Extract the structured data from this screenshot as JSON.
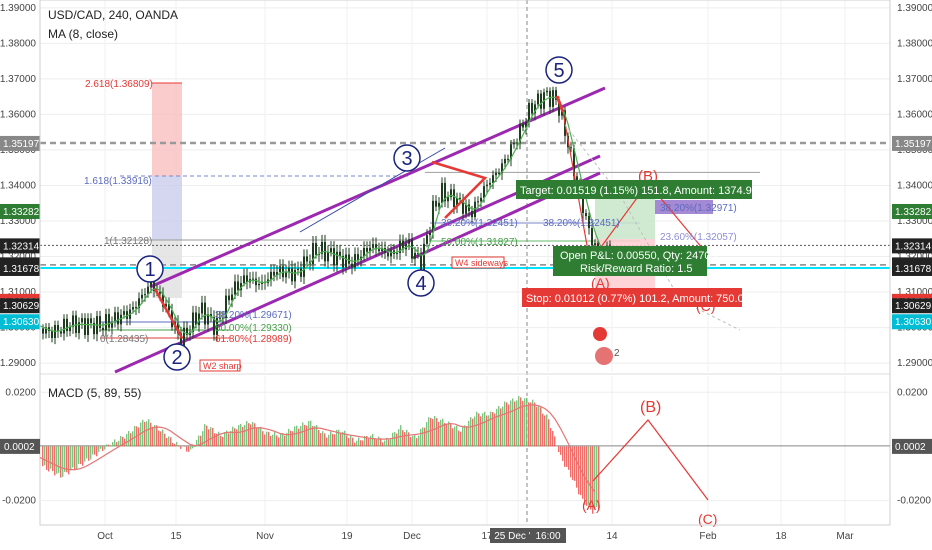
{
  "header": {
    "title": "USD/CAD, 240, OANDA",
    "ma": "MA (8, close)",
    "macd": "MACD (5, 89, 55)"
  },
  "colors": {
    "bull": "#26a69a",
    "bear": "#ef5350",
    "candle": "#1e3d1e",
    "channel": "#9c27b0",
    "wave": "#1a237e",
    "elliott_red": "#e53935",
    "cyan": "#00e5ff"
  },
  "chart_data": [
    {
      "type": "line",
      "title": "USD/CAD, 240, OANDA",
      "price_axis": [
        "1.39000",
        "1.38000",
        "1.37000",
        "1.36000",
        "1.35000",
        "1.34000",
        "1.33000",
        "1.32000",
        "1.31000",
        "1.30000",
        "1.29000"
      ],
      "price_range": [
        1.2875,
        1.3922
      ],
      "x_ticks": [
        "Oct",
        "15",
        "Nov",
        "19",
        "Dec",
        "17",
        "25 Dec '18",
        "16:00",
        "14",
        "Feb",
        "18",
        "Mar"
      ],
      "price_path": [
        [
          10,
          1.3035
        ],
        [
          30,
          1.301
        ],
        [
          50,
          1.2985
        ],
        [
          70,
          1.301
        ],
        [
          100,
          1.3006
        ],
        [
          115,
          1.3025
        ],
        [
          130,
          1.3045
        ],
        [
          150,
          1.3125
        ],
        [
          165,
          1.306
        ],
        [
          180,
          1.2962
        ],
        [
          200,
          1.305
        ],
        [
          215,
          1.3
        ],
        [
          230,
          1.31
        ],
        [
          245,
          1.314
        ],
        [
          260,
          1.312
        ],
        [
          275,
          1.316
        ],
        [
          295,
          1.315
        ],
        [
          315,
          1.322
        ],
        [
          335,
          1.32
        ],
        [
          350,
          1.318
        ],
        [
          370,
          1.323
        ],
        [
          390,
          1.3205
        ],
        [
          405,
          1.324
        ],
        [
          420,
          1.318
        ],
        [
          432,
          1.333
        ],
        [
          440,
          1.338
        ],
        [
          455,
          1.336
        ],
        [
          470,
          1.332
        ],
        [
          485,
          1.34
        ],
        [
          500,
          1.345
        ],
        [
          515,
          1.353
        ],
        [
          530,
          1.362
        ],
        [
          545,
          1.3655
        ],
        [
          556,
          1.364
        ],
        [
          566,
          1.353
        ],
        [
          575,
          1.342
        ],
        [
          590,
          1.325
        ],
        [
          600,
          1.32
        ],
        [
          610,
          1.3245
        ]
      ],
      "moving_average": {
        "name": "MA (8, close)",
        "color": "#4caf50"
      },
      "price_labels": [
        {
          "value": "1.35197",
          "color": "#888888"
        },
        {
          "value": "1.33282",
          "color": "#2e7d32"
        },
        {
          "value": "1.32314",
          "color": "#222222"
        },
        {
          "value": "50:34",
          "color": "#222222"
        },
        {
          "value": "1.31764",
          "color": "#222222"
        },
        {
          "value": "1.31678",
          "color": "#222222"
        },
        {
          "value": "1.30752",
          "color": "#e53935"
        },
        {
          "value": "1.30629",
          "color": "#222222"
        },
        {
          "value": "1.30630",
          "color": "#00bcd4"
        }
      ],
      "fib_labels": [
        {
          "text": "2.618(1.36809)",
          "color": "#e53935"
        },
        {
          "text": "1.618(1.33916)",
          "color": "#5c6bc0"
        },
        {
          "text": "1(1.32128)",
          "color": "#777777"
        },
        {
          "text": "38.20%(1.29671)",
          "color": "#5c6bc0"
        },
        {
          "text": "50.00%(1.29330)",
          "color": "#43a047"
        },
        {
          "text": "61.80%(1.28989)",
          "color": "#e53935"
        },
        {
          "text": "0(1.28435)",
          "color": "#777777"
        },
        {
          "text": "38.20%(1.32451)",
          "color": "#5c6bc0"
        },
        {
          "text": "50.00%(1.31827)",
          "color": "#43a047"
        },
        {
          "text": "38.20%(1.32451)",
          "color": "#5c6bc0"
        },
        {
          "text": "23.60%(1.32057)",
          "color": "#8e8ed6"
        },
        {
          "text": "38.20%(1.32971)",
          "color": "#5c6bc0"
        }
      ],
      "wave_labels": [
        "1",
        "2",
        "3",
        "4",
        "5"
      ],
      "correction_labels": [
        "(A)",
        "(B)",
        "(C)"
      ],
      "notes": [
        "W2 sharp",
        "W4 sideways"
      ],
      "trade_box": {
        "target": "Target: 0.01519 (1.15%) 151.8, Amount: 1374.99",
        "open_pl": "Open P&L: 0.00550, Qty: 24703",
        "risk_reward": "Risk/Reward Ratio: 1.5",
        "stop": "Stop: 0.01012 (0.77%) 101.2, Amount: 750.01"
      },
      "event_marker": {
        "count": "2"
      }
    },
    {
      "type": "bar",
      "title": "MACD (5, 89, 55)",
      "axis": [
        "0.0200",
        "0.0002",
        "-0.0200"
      ],
      "range": [
        -0.029,
        0.026
      ],
      "histogram_path": [
        [
          10,
          -0.0012
        ],
        [
          30,
          -0.005
        ],
        [
          45,
          -0.008
        ],
        [
          60,
          -0.011
        ],
        [
          75,
          -0.008
        ],
        [
          95,
          -0.003
        ],
        [
          110,
          0.001
        ],
        [
          125,
          0.004
        ],
        [
          145,
          0.01
        ],
        [
          160,
          0.006
        ],
        [
          175,
          0.001
        ],
        [
          190,
          -0.002
        ],
        [
          205,
          0.008
        ],
        [
          220,
          0.004
        ],
        [
          235,
          0.007
        ],
        [
          250,
          0.009
        ],
        [
          265,
          0.005
        ],
        [
          280,
          0.004
        ],
        [
          295,
          0.007
        ],
        [
          310,
          0.009
        ],
        [
          325,
          0.004
        ],
        [
          340,
          0.006
        ],
        [
          355,
          0.002
        ],
        [
          370,
          0.004
        ],
        [
          385,
          0.002
        ],
        [
          400,
          0.007
        ],
        [
          415,
          0.003
        ],
        [
          430,
          0.011
        ],
        [
          445,
          0.009
        ],
        [
          460,
          0.006
        ],
        [
          475,
          0.012
        ],
        [
          490,
          0.012
        ],
        [
          505,
          0.016
        ],
        [
          520,
          0.018
        ],
        [
          535,
          0.016
        ],
        [
          548,
          0.01
        ],
        [
          560,
          -0.004
        ],
        [
          572,
          -0.012
        ],
        [
          582,
          -0.02
        ],
        [
          592,
          -0.024
        ],
        [
          600,
          -0.022
        ]
      ],
      "signal_color": "#e57373"
    }
  ]
}
